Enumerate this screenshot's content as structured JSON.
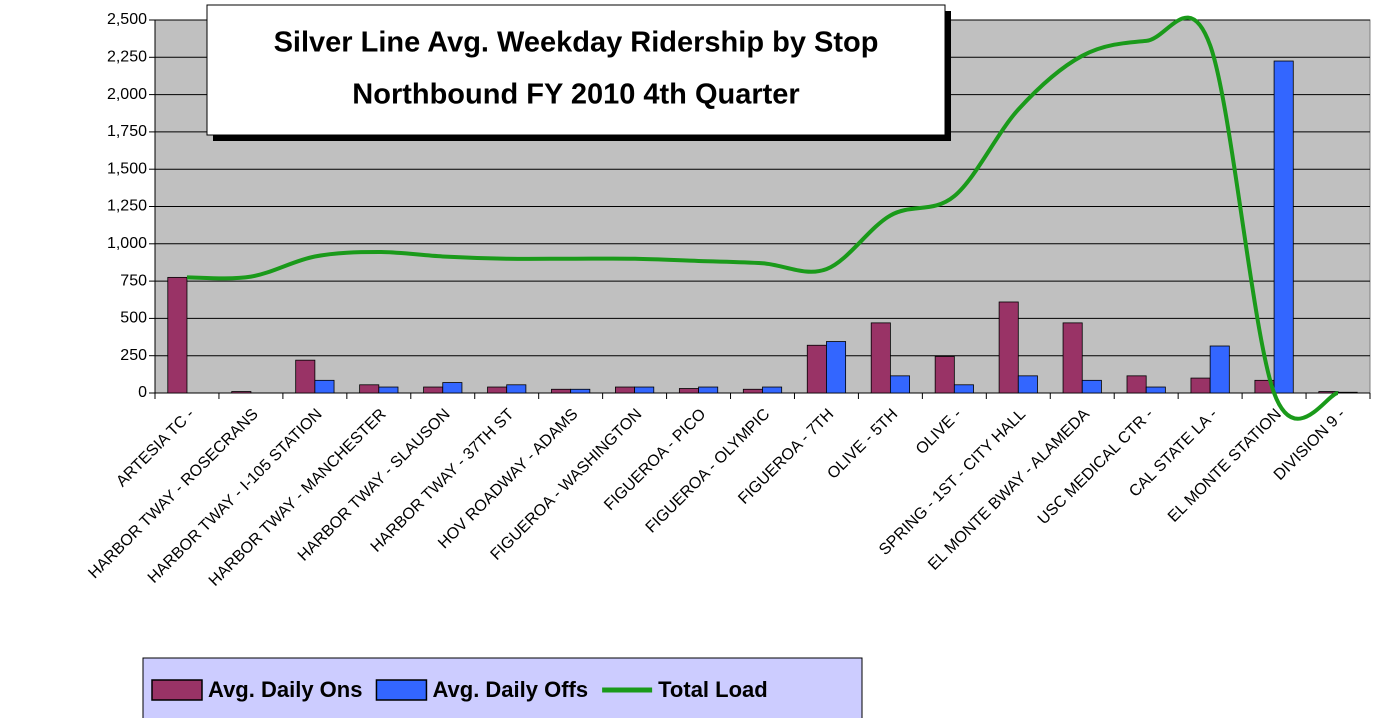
{
  "chart_data": {
    "type": "bar-line",
    "title": "Silver Line Avg. Weekday Ridership by Stop",
    "subtitle": "Northbound FY 2010 4th Quarter",
    "categories": [
      "ARTESIA TC -",
      "HARBOR TWAY - ROSECRANS",
      "HARBOR TWAY - I-105 STATION",
      "HARBOR TWAY - MANCHESTER",
      "HARBOR TWAY - SLAUSON",
      "HARBOR TWAY - 37TH ST",
      "HOV ROADWAY - ADAMS",
      "FIGUEROA - WASHINGTON",
      "FIGUEROA - PICO",
      "FIGUEROA - OLYMPIC",
      "FIGUEROA - 7TH",
      "OLIVE - 5TH",
      "OLIVE -",
      "SPRING - 1ST - CITY HALL",
      "EL MONTE BWAY - ALAMEDA",
      "USC MEDICAL CTR -",
      "CAL STATE LA -",
      "EL MONTE STATION",
      "DIVISION 9 -"
    ],
    "series": [
      {
        "name": "Avg. Daily Ons",
        "type": "bar",
        "color": "#993366",
        "values": [
          775,
          10,
          220,
          55,
          40,
          40,
          25,
          40,
          30,
          25,
          320,
          470,
          245,
          610,
          470,
          115,
          100,
          85,
          10
        ]
      },
      {
        "name": "Avg. Daily Offs",
        "type": "bar",
        "color": "#3366ff",
        "values": [
          0,
          0,
          85,
          40,
          70,
          55,
          25,
          40,
          40,
          40,
          345,
          115,
          55,
          115,
          85,
          40,
          315,
          2225,
          5
        ]
      },
      {
        "name": "Total Load",
        "type": "line",
        "color": "#1a9a1a",
        "values": [
          775,
          780,
          915,
          945,
          915,
          900,
          900,
          900,
          885,
          870,
          830,
          1190,
          1320,
          1900,
          2260,
          2360,
          2330,
          0,
          0
        ]
      }
    ],
    "ylim": [
      0,
      2500
    ],
    "yticks": [
      0,
      250,
      500,
      750,
      {
        "value": 1000,
        "label": "1,000"
      },
      {
        "value": 1250,
        "label": "1,250"
      },
      {
        "value": 1500,
        "label": "1,500"
      },
      {
        "value": 1750,
        "label": "1,750"
      },
      {
        "value": 2000,
        "label": "2,000"
      },
      {
        "value": 2250,
        "label": "2,250"
      },
      {
        "value": 2500,
        "label": "2,500"
      }
    ],
    "grid": true,
    "legend": "bottom"
  }
}
